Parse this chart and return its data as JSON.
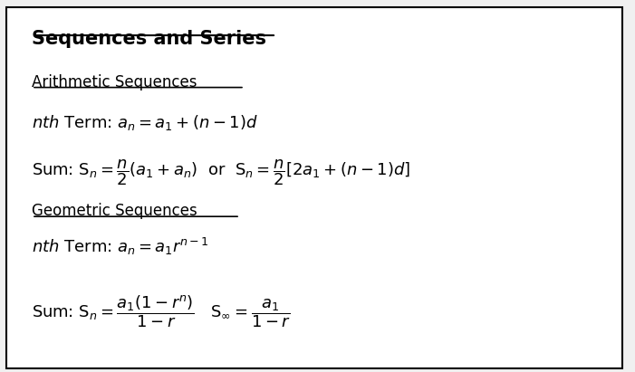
{
  "title": "Sequences and Series",
  "bg_color": "#f0f0f0",
  "box_color": "#ffffff",
  "text_color": "#000000",
  "figsize": [
    7.01,
    4.11
  ],
  "dpi": 100
}
